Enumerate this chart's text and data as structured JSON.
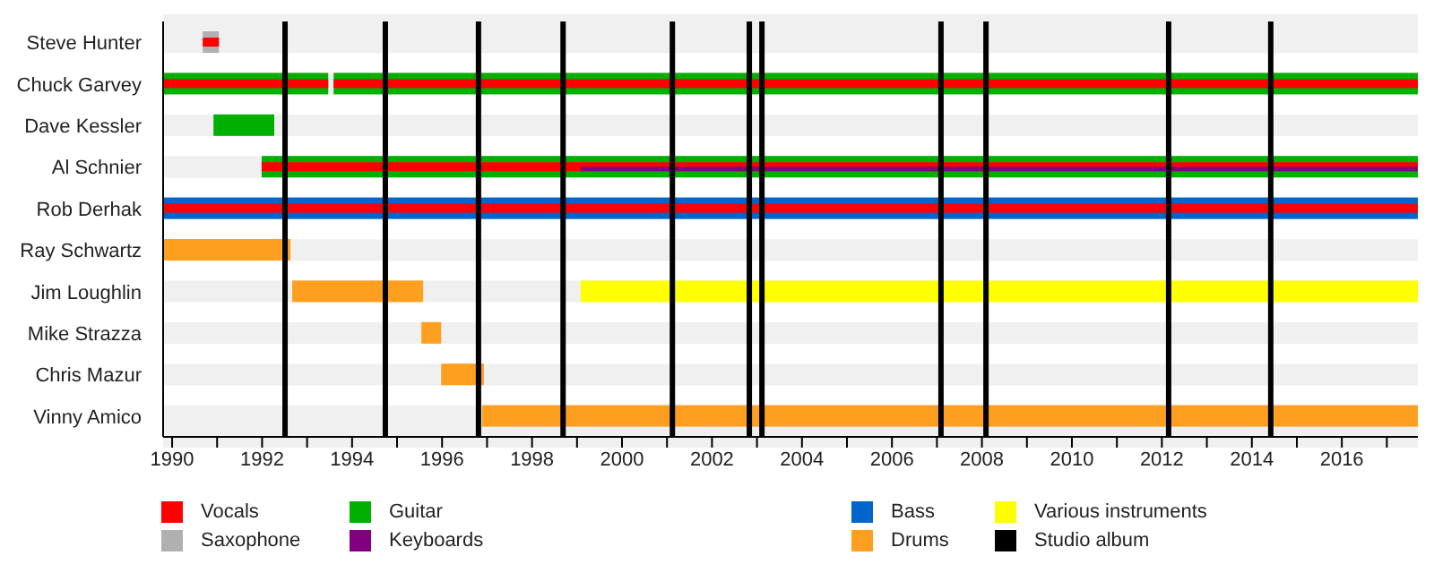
{
  "chart_data": {
    "type": "bar",
    "orientation": "horizontal",
    "categories": [
      "Steve Hunter",
      "Chuck Garvey",
      "Dave Kessler",
      "Al Schnier",
      "Rob Derhak",
      "Ray Schwartz",
      "Jim Loughlin",
      "Mike Strazza",
      "Chris Mazur",
      "Vinny Amico"
    ],
    "series": [
      {
        "name": "Vocals",
        "color": "#ff0000",
        "base": [
          1990.68,
          1989.8,
          null,
          1991.99,
          1989.8,
          null,
          null,
          null,
          null,
          null
        ],
        "values": [
          0.36,
          3.67,
          null,
          25.7,
          27.89,
          null,
          null,
          null,
          null,
          null
        ]
      },
      {
        "color": "#ff0000",
        "base": [
          null,
          1993.59,
          null,
          null,
          null,
          null,
          null,
          null,
          null,
          null
        ],
        "values": [
          null,
          24.1,
          null,
          null,
          null,
          null,
          null,
          null,
          null,
          null
        ]
      },
      {
        "name": "Saxophone",
        "color": "#b0b0b0",
        "base": [
          1990.68,
          null,
          null,
          null,
          null,
          null,
          null,
          null,
          null,
          null
        ],
        "values": [
          0.36,
          null,
          null,
          null,
          null,
          null,
          null,
          null,
          null,
          null
        ]
      },
      {
        "name": "Guitar",
        "color": "#00b000",
        "base": [
          null,
          1989.8,
          1990.92,
          1991.99,
          null,
          null,
          null,
          null,
          null,
          null
        ],
        "values": [
          null,
          3.67,
          1.35,
          25.7,
          null,
          null,
          null,
          null,
          null,
          null
        ]
      },
      {
        "color": "#00b000",
        "base": [
          null,
          1993.59,
          null,
          null,
          null,
          null,
          null,
          null,
          null,
          null
        ],
        "values": [
          null,
          24.1,
          null,
          null,
          null,
          null,
          null,
          null,
          null,
          null
        ]
      },
      {
        "name": "Keyboards",
        "color": "#800080",
        "base": [
          null,
          null,
          null,
          1999.08,
          null,
          null,
          null,
          null,
          null,
          null
        ],
        "values": [
          null,
          null,
          null,
          18.61,
          null,
          null,
          null,
          null,
          null,
          null
        ]
      },
      {
        "name": "Bass",
        "color": "#0066cc",
        "base": [
          null,
          null,
          null,
          null,
          1989.8,
          null,
          null,
          null,
          null,
          null
        ],
        "values": [
          null,
          null,
          null,
          null,
          27.89,
          null,
          null,
          null,
          null,
          null
        ]
      },
      {
        "name": "Drums",
        "color": "#ff9f20",
        "base": [
          null,
          null,
          null,
          null,
          null,
          1989.8,
          1992.67,
          1995.54,
          1995.98,
          1996.89
        ],
        "values": [
          null,
          null,
          null,
          null,
          null,
          2.83,
          2.91,
          0.44,
          0.95,
          20.8
        ]
      },
      {
        "name": "Various instruments",
        "color": "#ffff00",
        "base": [
          null,
          null,
          null,
          null,
          null,
          null,
          1999.08,
          null,
          null,
          null
        ],
        "values": [
          null,
          null,
          null,
          null,
          null,
          null,
          18.61,
          null,
          null,
          null
        ]
      }
    ],
    "xlim": [
      1989.8,
      2017.69
    ],
    "xticks": [
      1990,
      {
        "value": 1991,
        "label": null
      },
      1992,
      {
        "value": 1993,
        "label": null
      },
      1994,
      {
        "value": 1995,
        "label": null
      },
      1996,
      {
        "value": 1997,
        "label": null
      },
      1998,
      {
        "value": 1999,
        "label": null
      },
      2000,
      {
        "value": 2001,
        "label": null
      },
      2002,
      {
        "value": 2003,
        "label": null
      },
      2004,
      {
        "value": 2005,
        "label": null
      },
      2006,
      {
        "value": 2007,
        "label": null
      },
      2008,
      {
        "value": 2009,
        "label": null
      },
      2010,
      {
        "value": 2011,
        "label": null
      },
      2012,
      {
        "value": 2013,
        "label": null
      },
      2014,
      {
        "value": 2015,
        "label": null
      },
      2016,
      {
        "value": 2017,
        "label": null
      }
    ],
    "grid": "y",
    "legend": "bottom",
    "ref_lines": [
      {
        "axis": "x",
        "value": 1992.51,
        "label": "Studio album",
        "color": "#000000"
      },
      {
        "axis": "x",
        "value": 1994.74,
        "color": "#000000"
      },
      {
        "axis": "x",
        "value": 1996.81,
        "color": "#000000"
      },
      {
        "axis": "x",
        "value": 1998.69,
        "color": "#000000"
      },
      {
        "axis": "x",
        "value": 2001.12,
        "color": "#000000"
      },
      {
        "axis": "x",
        "value": 2002.83,
        "color": "#000000"
      },
      {
        "axis": "x",
        "value": 2003.11,
        "color": "#000000"
      },
      {
        "axis": "x",
        "value": 2007.09,
        "color": "#000000"
      },
      {
        "axis": "x",
        "value": 2008.09,
        "color": "#000000"
      },
      {
        "axis": "x",
        "value": 2012.15,
        "color": "#000000"
      },
      {
        "axis": "x",
        "value": 2014.42,
        "color": "#000000"
      }
    ]
  }
}
